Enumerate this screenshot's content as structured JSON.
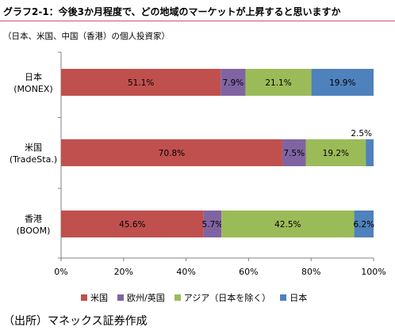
{
  "title": "グラフ2-1：今後3か月程度で、どの地域のマーケットが上昇すると思いますか",
  "subtitle": "（日本、米国、中国（香港）の個人投資家）",
  "source": "（出所）マネックス証券作成",
  "chart_data": {
    "type": "bar",
    "orientation": "horizontal-stacked-100",
    "categories": [
      {
        "name": "日本",
        "sub": "(MONEX)"
      },
      {
        "name": "米国",
        "sub": "(TradeSta.)"
      },
      {
        "name": "香港",
        "sub": "(BOOM)"
      }
    ],
    "series": [
      {
        "name": "米国",
        "color": "#c0504d",
        "values": [
          51.1,
          70.8,
          45.6
        ],
        "labels": [
          "51.1%",
          "70.8%",
          "45.6%"
        ]
      },
      {
        "name": "欧州/英国",
        "color": "#8064a2",
        "values": [
          7.9,
          7.5,
          5.7
        ],
        "labels": [
          "7.9%",
          "7.5%",
          "5.7%"
        ]
      },
      {
        "name": "アジア（日本を除く）",
        "color": "#9bbb59",
        "values": [
          21.1,
          19.2,
          42.5
        ],
        "labels": [
          "21.1%",
          "19.2%",
          "42.5%"
        ]
      },
      {
        "name": "日本",
        "color": "#4f81bd",
        "values": [
          19.9,
          2.5,
          6.2
        ],
        "labels": [
          "19.9%",
          "2.5%",
          "6.2%"
        ]
      }
    ],
    "xlim": [
      0,
      100
    ],
    "xticks": [
      "0%",
      "20%",
      "40%",
      "60%",
      "80%",
      "100%"
    ],
    "legend_position": "bottom"
  }
}
